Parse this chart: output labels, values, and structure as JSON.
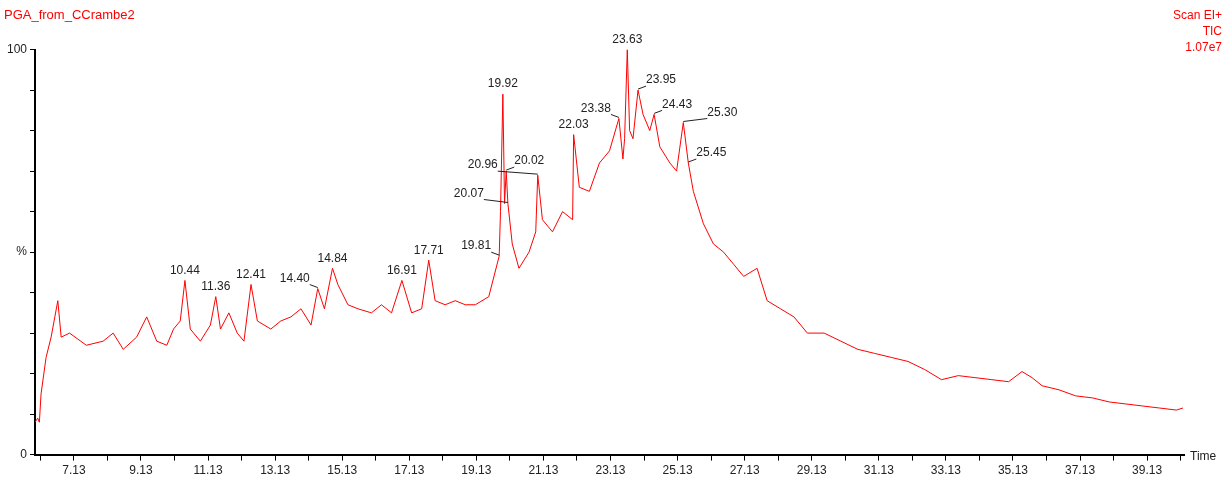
{
  "chart_data": {
    "type": "line",
    "title": "PGA_from_CCrambe2",
    "xlabel": "Time",
    "color": "#ff0000",
    "grid": false,
    "legend": false,
    "marker": "none",
    "line_style": "solid",
    "x": [
      5.97,
      6.05,
      6.1,
      6.15,
      6.3,
      6.45,
      6.65,
      6.75,
      7.0,
      7.5,
      8.0,
      8.3,
      8.6,
      9.0,
      9.3,
      9.6,
      9.9,
      10.1,
      10.3,
      10.44,
      10.6,
      10.9,
      11.2,
      11.36,
      11.5,
      11.75,
      12.0,
      12.2,
      12.41,
      12.6,
      13.0,
      13.3,
      13.6,
      13.9,
      14.2,
      14.4,
      14.6,
      14.84,
      15.0,
      15.3,
      15.6,
      16.0,
      16.3,
      16.6,
      16.91,
      17.2,
      17.5,
      17.71,
      17.9,
      18.2,
      18.5,
      18.8,
      19.1,
      19.5,
      19.81,
      19.85,
      19.92,
      19.97,
      20.02,
      20.07,
      20.2,
      20.4,
      20.7,
      20.9,
      20.96,
      21.1,
      21.4,
      21.7,
      22.0,
      22.03,
      22.2,
      22.5,
      22.8,
      23.1,
      23.38,
      23.5,
      23.55,
      23.63,
      23.7,
      23.8,
      23.95,
      24.1,
      24.3,
      24.43,
      24.6,
      24.9,
      25.1,
      25.3,
      25.45,
      25.6,
      25.9,
      26.2,
      26.5,
      26.8,
      27.1,
      27.5,
      27.8,
      28.2,
      28.6,
      29.0,
      29.5,
      30.0,
      30.5,
      31.0,
      31.5,
      32.0,
      32.5,
      33.0,
      33.5,
      34.0,
      34.5,
      35.0,
      35.4,
      35.7,
      36.0,
      36.5,
      37.0,
      37.5,
      38.0,
      38.5,
      39.0,
      39.5,
      40.0,
      40.2
    ],
    "values": [
      8,
      9,
      8,
      15,
      24,
      29,
      38,
      29,
      30,
      27,
      28,
      30,
      26,
      29,
      34,
      28,
      27,
      31,
      33,
      43,
      31,
      28,
      32,
      39,
      31,
      35,
      30,
      28,
      42,
      33,
      31,
      33,
      34,
      36,
      32,
      41,
      36,
      46,
      42,
      37,
      36,
      35,
      37,
      35,
      43,
      35,
      36,
      48,
      38,
      37,
      38,
      37,
      37,
      39,
      49,
      60,
      89,
      62,
      70,
      62,
      52,
      46,
      50,
      55,
      69,
      58,
      55,
      60,
      58,
      79,
      66,
      65,
      72,
      75,
      83,
      73,
      78,
      100,
      80,
      78,
      90,
      84,
      80,
      84,
      76,
      72,
      70,
      82,
      72,
      65,
      57,
      52,
      50,
      47,
      44,
      46,
      38,
      36,
      34,
      30,
      30,
      28,
      26,
      25,
      24,
      23,
      21,
      18.5,
      19.5,
      19,
      18.5,
      18,
      20.5,
      19,
      17,
      16,
      14.5,
      14,
      13,
      12.5,
      12,
      11.5,
      11,
      11.5
    ],
    "xlim": [
      5.97,
      40.23
    ],
    "xticks": [
      {
        "value": 6.13,
        "label": null
      },
      7.13,
      {
        "value": 8.13,
        "label": null
      },
      9.13,
      {
        "value": 10.13,
        "label": null
      },
      11.13,
      {
        "value": 12.13,
        "label": null
      },
      13.13,
      {
        "value": 14.13,
        "label": null
      },
      15.13,
      {
        "value": 16.13,
        "label": null
      },
      17.13,
      {
        "value": 18.13,
        "label": null
      },
      19.13,
      {
        "value": 20.13,
        "label": null
      },
      21.13,
      {
        "value": 22.13,
        "label": null
      },
      23.13,
      {
        "value": 24.13,
        "label": null
      },
      25.13,
      {
        "value": 26.13,
        "label": null
      },
      27.13,
      {
        "value": 28.13,
        "label": null
      },
      29.13,
      {
        "value": 30.13,
        "label": null
      },
      31.13,
      {
        "value": 32.13,
        "label": null
      },
      33.13,
      {
        "value": 34.13,
        "label": null
      },
      35.13,
      {
        "value": 36.13,
        "label": null
      },
      37.13,
      {
        "value": 38.13,
        "label": null
      },
      39.13,
      {
        "value": 40.13,
        "label": null
      }
    ],
    "ylim": [
      0,
      100
    ],
    "yticks": [
      0,
      {
        "value": 10,
        "label": null
      },
      {
        "value": 20,
        "label": null
      },
      {
        "value": 30,
        "label": null
      },
      {
        "value": 40,
        "label": null
      },
      {
        "value": 50,
        "label": "%"
      },
      {
        "value": 60,
        "label": null
      },
      {
        "value": 70,
        "label": null
      },
      {
        "value": 80,
        "label": null
      },
      {
        "value": 90,
        "label": null
      },
      100
    ],
    "annotations": [
      "Scan EI+",
      "TIC",
      "1.07e7",
      {
        "text": "10.44",
        "x": 10.44,
        "y": 43
      },
      {
        "text": "11.36",
        "x": 11.36,
        "y": 39
      },
      {
        "text": "12.41",
        "x": 12.41,
        "y": 42
      },
      {
        "text": "14.40",
        "x": 14.4,
        "y": 41
      },
      {
        "text": "14.84",
        "x": 14.84,
        "y": 46
      },
      {
        "text": "16.91",
        "x": 16.91,
        "y": 43
      },
      {
        "text": "17.71",
        "x": 17.71,
        "y": 48
      },
      {
        "text": "19.81",
        "x": 19.81,
        "y": 49
      },
      {
        "text": "19.92",
        "x": 19.92,
        "y": 89
      },
      {
        "text": "20.02",
        "x": 20.02,
        "y": 70
      },
      {
        "text": "20.07",
        "x": 20.07,
        "y": 62
      },
      {
        "text": "20.96",
        "x": 20.96,
        "y": 69
      },
      {
        "text": "22.03",
        "x": 22.03,
        "y": 79
      },
      {
        "text": "23.38",
        "x": 23.38,
        "y": 83
      },
      {
        "text": "23.63",
        "x": 23.63,
        "y": 100
      },
      {
        "text": "23.95",
        "x": 23.95,
        "y": 90
      },
      {
        "text": "24.43",
        "x": 24.43,
        "y": 84
      },
      {
        "text": "25.30",
        "x": 25.3,
        "y": 82
      },
      {
        "text": "25.45",
        "x": 25.45,
        "y": 72
      }
    ]
  }
}
